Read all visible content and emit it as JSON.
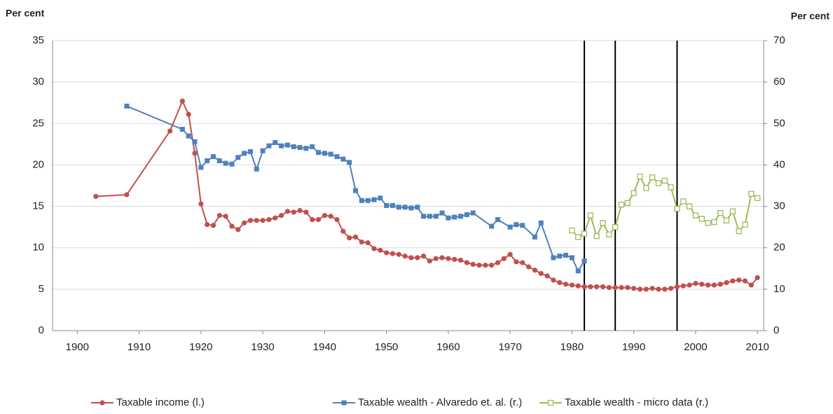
{
  "chart_data": {
    "type": "line",
    "y_label": "Per cent",
    "y2_label": "Per cent",
    "xlim": [
      1896,
      2011
    ],
    "xticks": [
      1900,
      1910,
      1920,
      1930,
      1940,
      1950,
      1960,
      1970,
      1980,
      1990,
      2000,
      2010
    ],
    "ylim": [
      0,
      35
    ],
    "yticks": [
      0,
      5,
      10,
      15,
      20,
      25,
      30,
      35
    ],
    "y2lim": [
      0,
      70
    ],
    "y2ticks": [
      0,
      10,
      20,
      30,
      40,
      50,
      60,
      70
    ],
    "grid": true,
    "legend": "bottom",
    "vlines": [
      1982,
      1987,
      1997
    ],
    "vline_color": "#000000",
    "series": [
      {
        "name": "Taxable income (l.)",
        "color": "#c0504d",
        "marker": "circle",
        "axis": "y",
        "x": [
          1903,
          1908,
          1915,
          1917,
          1918,
          1919,
          1920,
          1921,
          1922,
          1923,
          1924,
          1925,
          1926,
          1927,
          1928,
          1929,
          1930,
          1931,
          1932,
          1933,
          1934,
          1935,
          1936,
          1937,
          1938,
          1939,
          1940,
          1941,
          1942,
          1943,
          1944,
          1945,
          1946,
          1947,
          1948,
          1949,
          1950,
          1951,
          1952,
          1953,
          1954,
          1955,
          1956,
          1957,
          1958,
          1959,
          1960,
          1961,
          1962,
          1963,
          1964,
          1965,
          1966,
          1967,
          1968,
          1969,
          1970,
          1971,
          1972,
          1973,
          1974,
          1975,
          1976,
          1977,
          1978,
          1979,
          1980,
          1981,
          1982,
          1983,
          1984,
          1985,
          1986,
          1987,
          1988,
          1989,
          1990,
          1991,
          1992,
          1993,
          1994,
          1995,
          1996,
          1997,
          1998,
          1999,
          2000,
          2001,
          2002,
          2003,
          2004,
          2005,
          2006,
          2007,
          2008,
          2009,
          2010
        ],
        "values": [
          16.2,
          16.4,
          24.1,
          27.7,
          26.1,
          21.4,
          15.3,
          12.8,
          12.7,
          13.9,
          13.8,
          12.6,
          12.2,
          13.0,
          13.3,
          13.3,
          13.3,
          13.4,
          13.6,
          13.9,
          14.4,
          14.3,
          14.5,
          14.3,
          13.4,
          13.4,
          13.9,
          13.8,
          13.4,
          12.0,
          11.2,
          11.3,
          10.7,
          10.6,
          9.9,
          9.7,
          9.4,
          9.3,
          9.2,
          9.0,
          8.8,
          8.8,
          9.0,
          8.4,
          8.7,
          8.8,
          8.7,
          8.6,
          8.5,
          8.2,
          8.0,
          7.9,
          7.9,
          7.9,
          8.2,
          8.7,
          9.2,
          8.3,
          8.2,
          7.7,
          7.3,
          6.9,
          6.6,
          6.1,
          5.8,
          5.6,
          5.5,
          5.4,
          5.3,
          5.3,
          5.3,
          5.3,
          5.2,
          5.2,
          5.2,
          5.2,
          5.1,
          5.0,
          5.0,
          5.1,
          5.0,
          5.0,
          5.1,
          5.3,
          5.4,
          5.5,
          5.7,
          5.6,
          5.5,
          5.5,
          5.6,
          5.8,
          6.0,
          6.1,
          6.0,
          5.5,
          6.4
        ]
      },
      {
        "name": "Taxable wealth - Alvaredo et. al. (r.)",
        "color": "#4f81bd",
        "marker": "square",
        "axis": "y2",
        "x": [
          1908,
          1917,
          1918,
          1919,
          1920,
          1921,
          1922,
          1923,
          1924,
          1925,
          1926,
          1927,
          1928,
          1929,
          1930,
          1931,
          1932,
          1933,
          1934,
          1935,
          1936,
          1937,
          1938,
          1939,
          1940,
          1941,
          1942,
          1943,
          1944,
          1945,
          1946,
          1947,
          1948,
          1949,
          1950,
          1951,
          1952,
          1953,
          1954,
          1955,
          1956,
          1957,
          1958,
          1959,
          1960,
          1961,
          1962,
          1963,
          1964,
          1967,
          1968,
          1970,
          1971,
          1972,
          1974,
          1975,
          1977,
          1978,
          1979,
          1980,
          1981,
          1982
        ],
        "values": [
          54.2,
          48.6,
          47.0,
          45.6,
          39.4,
          41.0,
          42.0,
          41.0,
          40.4,
          40.2,
          41.8,
          42.8,
          43.2,
          39.0,
          43.4,
          44.6,
          45.4,
          44.6,
          44.8,
          44.4,
          44.2,
          44.0,
          44.4,
          43.0,
          42.8,
          42.6,
          42.0,
          41.4,
          40.6,
          33.8,
          31.4,
          31.4,
          31.6,
          32.0,
          30.2,
          30.2,
          29.8,
          29.8,
          29.6,
          29.8,
          27.6,
          27.6,
          27.6,
          28.4,
          27.2,
          27.4,
          27.6,
          28.0,
          28.4,
          25.2,
          26.8,
          25.0,
          25.6,
          25.4,
          22.6,
          26.0,
          17.6,
          18.0,
          18.2,
          17.6,
          14.4,
          16.8
        ]
      },
      {
        "name": "Taxable wealth - micro data (r.)",
        "color": "#9bbb59",
        "marker": "hollow-square",
        "axis": "y2",
        "x": [
          1980,
          1981,
          1982,
          1983,
          1984,
          1985,
          1986,
          1987,
          1988,
          1989,
          1990,
          1991,
          1992,
          1993,
          1994,
          1995,
          1996,
          1997,
          1998,
          1999,
          2000,
          2001,
          2002,
          2003,
          2004,
          2005,
          2006,
          2007,
          2008,
          2009,
          2010
        ],
        "values": [
          24.2,
          22.6,
          23.4,
          27.8,
          22.8,
          26.0,
          23.2,
          25.0,
          30.4,
          30.8,
          33.2,
          37.2,
          34.4,
          37.0,
          35.6,
          36.2,
          34.6,
          29.4,
          31.2,
          30.0,
          27.8,
          27.0,
          26.0,
          26.2,
          28.4,
          26.6,
          28.8,
          24.0,
          25.6,
          33.0,
          32.0
        ]
      }
    ]
  }
}
